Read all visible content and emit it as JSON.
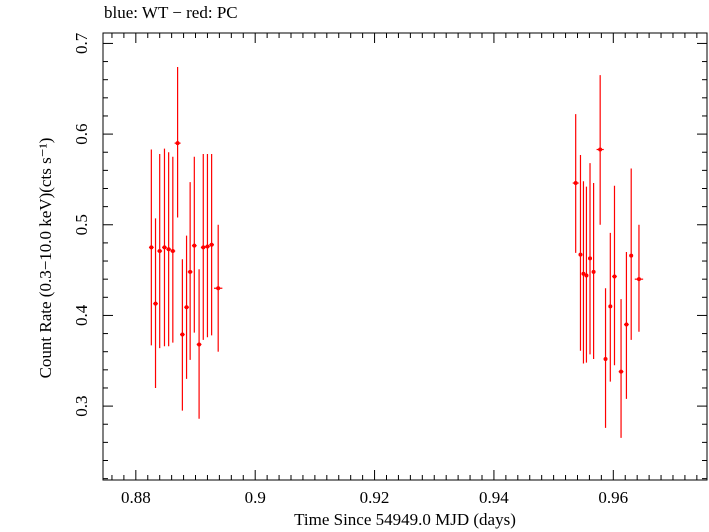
{
  "chart_data": {
    "type": "scatter",
    "title": "blue: WT − red: PC",
    "xlabel": "Time Since 54949.0 MJD (days)",
    "ylabel": "Count Rate (0.3−10.0 keV)(cts s⁻¹)",
    "xlim": [
      0.8745,
      0.9757
    ],
    "ylim": [
      0.2185,
      0.7115
    ],
    "xticks": [
      0.88,
      0.9,
      0.92,
      0.94,
      0.96
    ],
    "xtick_labels": [
      "0.88",
      "0.9",
      "0.92",
      "0.94",
      "0.96"
    ],
    "yticks": [
      0.3,
      0.4,
      0.5,
      0.6,
      0.7
    ],
    "ytick_labels": [
      "0.3",
      "0.4",
      "0.5",
      "0.6",
      "0.7"
    ],
    "colors": {
      "PC": "#ff0000",
      "WT": "#0000ff"
    },
    "series": [
      {
        "name": "PC",
        "color": "#ff0000",
        "points": [
          {
            "x": 0.8826,
            "y": 0.475,
            "ylo": 0.367,
            "yhi": 0.583,
            "xerr": 0.0004
          },
          {
            "x": 0.8833,
            "y": 0.413,
            "ylo": 0.32,
            "yhi": 0.507,
            "xerr": 0.0004
          },
          {
            "x": 0.884,
            "y": 0.471,
            "ylo": 0.364,
            "yhi": 0.578,
            "xerr": 0.0004
          },
          {
            "x": 0.8848,
            "y": 0.475,
            "ylo": 0.366,
            "yhi": 0.584,
            "xerr": 0.0004
          },
          {
            "x": 0.8855,
            "y": 0.473,
            "ylo": 0.366,
            "yhi": 0.58,
            "xerr": 0.0004
          },
          {
            "x": 0.8862,
            "y": 0.471,
            "ylo": 0.37,
            "yhi": 0.575,
            "xerr": 0.0004
          },
          {
            "x": 0.887,
            "y": 0.59,
            "ylo": 0.508,
            "yhi": 0.674,
            "xerr": 0.0005
          },
          {
            "x": 0.8878,
            "y": 0.379,
            "ylo": 0.295,
            "yhi": 0.462,
            "xerr": 0.0004
          },
          {
            "x": 0.8885,
            "y": 0.409,
            "ylo": 0.33,
            "yhi": 0.488,
            "xerr": 0.0004
          },
          {
            "x": 0.8891,
            "y": 0.448,
            "ylo": 0.351,
            "yhi": 0.547,
            "xerr": 0.0004
          },
          {
            "x": 0.8898,
            "y": 0.477,
            "ylo": 0.381,
            "yhi": 0.575,
            "xerr": 0.0004
          },
          {
            "x": 0.8906,
            "y": 0.368,
            "ylo": 0.286,
            "yhi": 0.451,
            "xerr": 0.0004
          },
          {
            "x": 0.8913,
            "y": 0.475,
            "ylo": 0.373,
            "yhi": 0.578,
            "xerr": 0.0004
          },
          {
            "x": 0.892,
            "y": 0.476,
            "ylo": 0.376,
            "yhi": 0.578,
            "xerr": 0.0004
          },
          {
            "x": 0.8927,
            "y": 0.478,
            "ylo": 0.378,
            "yhi": 0.578,
            "xerr": 0.0004
          },
          {
            "x": 0.8938,
            "y": 0.43,
            "ylo": 0.36,
            "yhi": 0.5,
            "xerr": 0.0007
          },
          {
            "x": 0.9537,
            "y": 0.546,
            "ylo": 0.469,
            "yhi": 0.622,
            "xerr": 0.0005
          },
          {
            "x": 0.9545,
            "y": 0.467,
            "ylo": 0.361,
            "yhi": 0.577,
            "xerr": 0.0003
          },
          {
            "x": 0.955,
            "y": 0.446,
            "ylo": 0.347,
            "yhi": 0.548,
            "xerr": 0.0003
          },
          {
            "x": 0.9555,
            "y": 0.444,
            "ylo": 0.348,
            "yhi": 0.542,
            "xerr": 0.0003
          },
          {
            "x": 0.9561,
            "y": 0.463,
            "ylo": 0.357,
            "yhi": 0.568,
            "xerr": 0.0003
          },
          {
            "x": 0.9567,
            "y": 0.448,
            "ylo": 0.352,
            "yhi": 0.546,
            "xerr": 0.0003
          },
          {
            "x": 0.9578,
            "y": 0.583,
            "ylo": 0.5,
            "yhi": 0.665,
            "xerr": 0.0006
          },
          {
            "x": 0.9587,
            "y": 0.352,
            "ylo": 0.276,
            "yhi": 0.43,
            "xerr": 0.0003
          },
          {
            "x": 0.9595,
            "y": 0.41,
            "ylo": 0.327,
            "yhi": 0.491,
            "xerr": 0.0003
          },
          {
            "x": 0.9602,
            "y": 0.443,
            "ylo": 0.345,
            "yhi": 0.543,
            "xerr": 0.0004
          },
          {
            "x": 0.9613,
            "y": 0.338,
            "ylo": 0.265,
            "yhi": 0.418,
            "xerr": 0.0004
          },
          {
            "x": 0.9622,
            "y": 0.39,
            "ylo": 0.308,
            "yhi": 0.47,
            "xerr": 0.0004
          },
          {
            "x": 0.963,
            "y": 0.466,
            "ylo": 0.373,
            "yhi": 0.562,
            "xerr": 0.0003
          },
          {
            "x": 0.9643,
            "y": 0.44,
            "ylo": 0.382,
            "yhi": 0.5,
            "xerr": 0.0007
          }
        ]
      }
    ],
    "grid": false
  }
}
